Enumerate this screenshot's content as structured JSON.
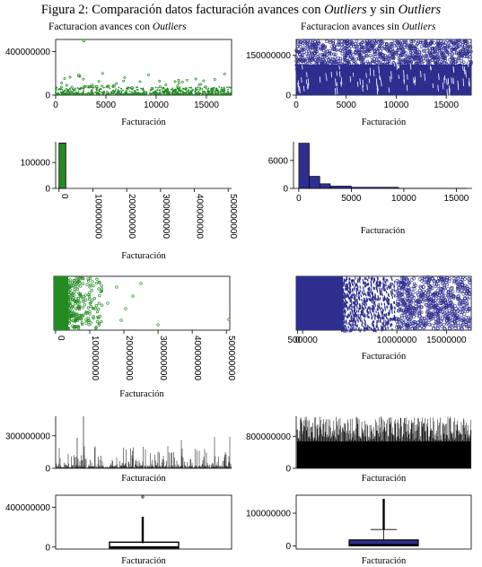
{
  "figure_title": {
    "prefix": "Figura 2: Comparación datos facturación avances con ",
    "em1": "Outliers",
    "mid": " y sin ",
    "em2": "Outliers"
  },
  "panel_titles": {
    "left_prefix": "Facturacion avances con ",
    "left_em": "Outliers",
    "right_prefix": "Facturacion avances sin ",
    "right_em": "Outliers"
  },
  "colors": {
    "with_outliers": "#228b22",
    "without_outliers": "#2e2e8f",
    "ink": "#000000"
  },
  "chart_data": [
    {
      "id": "L1",
      "type": "scatter",
      "series": "Facturacion avances con Outliers",
      "xlabel": "Facturación",
      "xlim": [
        0,
        17500
      ],
      "ylim": [
        0,
        510000000
      ],
      "xticks": [
        "0",
        "5000",
        "10000",
        "15000"
      ],
      "yticks": [
        "0",
        "400000000"
      ],
      "points": [
        [
          2800,
          500000000
        ],
        [
          2300,
          180000000
        ],
        [
          5800,
          85000000
        ],
        [
          7600,
          65000000
        ],
        [
          9600,
          60000000
        ],
        [
          10700,
          48000000
        ],
        [
          12300,
          55000000
        ],
        [
          15600,
          55000000
        ],
        [
          1400,
          42000000
        ],
        [
          4200,
          38000000
        ]
      ]
    },
    {
      "id": "R1",
      "type": "scatter",
      "series": "Facturacion avances sin Outliers",
      "xlabel": "Facturación",
      "xlim": [
        0,
        17500
      ],
      "ylim": [
        0,
        210000000
      ],
      "xticks": [
        "0",
        "5000",
        "10000",
        "15000"
      ],
      "yticks": [
        "0",
        "150000000"
      ]
    },
    {
      "id": "L2",
      "type": "bar",
      "subtype": "histogram",
      "xlabel": "Facturación",
      "xlim": [
        -10000000,
        510000000
      ],
      "ylim": [
        0,
        180000
      ],
      "xticks": [
        "0",
        "100000000",
        "200000000",
        "300000000",
        "400000000",
        "500000000"
      ],
      "yticks": [
        "0",
        "100000"
      ],
      "bins": [
        {
          "from": 0,
          "to": 20000000,
          "count": 175000
        }
      ]
    },
    {
      "id": "R2",
      "type": "bar",
      "subtype": "histogram",
      "xlabel": "Facturación",
      "xlim": [
        -500,
        16500
      ],
      "ylim": [
        0,
        10000
      ],
      "xticks": [
        "0",
        "5000",
        "10000",
        "15000"
      ],
      "yticks": [
        "0",
        "6000"
      ],
      "bins": [
        {
          "from": 0,
          "to": 1000,
          "count": 9700
        },
        {
          "from": 1000,
          "to": 2000,
          "count": 2600
        },
        {
          "from": 2000,
          "to": 3000,
          "count": 1000
        },
        {
          "from": 3000,
          "to": 5000,
          "count": 500
        },
        {
          "from": 5000,
          "to": 9500,
          "count": 250
        },
        {
          "from": 9500,
          "to": 16000,
          "count": 20
        }
      ]
    },
    {
      "id": "L3",
      "type": "scatter",
      "subtype": "strip",
      "xlabel": "Facturación",
      "xlim": [
        -5000000,
        510000000
      ],
      "xticks": [
        "0",
        "100000000",
        "200000000",
        "300000000",
        "400000000",
        "500000000"
      ]
    },
    {
      "id": "R3",
      "type": "scatter",
      "subtype": "strip",
      "xlabel": "Facturación",
      "xlim": [
        -150000,
        17500000
      ],
      "xticks": [
        "0",
        "500000",
        "10000000",
        "15000000"
      ]
    },
    {
      "id": "L4",
      "type": "line",
      "subtype": "index-plot",
      "xlabel": "Facturación",
      "ylim": [
        0,
        480000000
      ],
      "yticks": [
        "0",
        "300000000"
      ]
    },
    {
      "id": "R4",
      "type": "line",
      "subtype": "index-plot",
      "xlabel": "Facturación",
      "ylim": [
        0,
        1300000000
      ],
      "yticks": [
        "0",
        "800000000"
      ]
    },
    {
      "id": "L5",
      "type": "boxplot",
      "xlabel": "Facturación",
      "ylim": [
        -20000000,
        520000000
      ],
      "yticks": [
        "0",
        "400000000"
      ],
      "box": {
        "q1": 0,
        "median": 3000000,
        "q3": 40000000
      }
    },
    {
      "id": "R5",
      "type": "boxplot",
      "xlabel": "Facturación",
      "ylim": [
        -10000000,
        155000000
      ],
      "yticks": [
        "0",
        "100000000"
      ],
      "box": {
        "q1": 0,
        "median": 4000000,
        "q3": 18000000,
        "whisker_high": 50000000
      }
    }
  ]
}
